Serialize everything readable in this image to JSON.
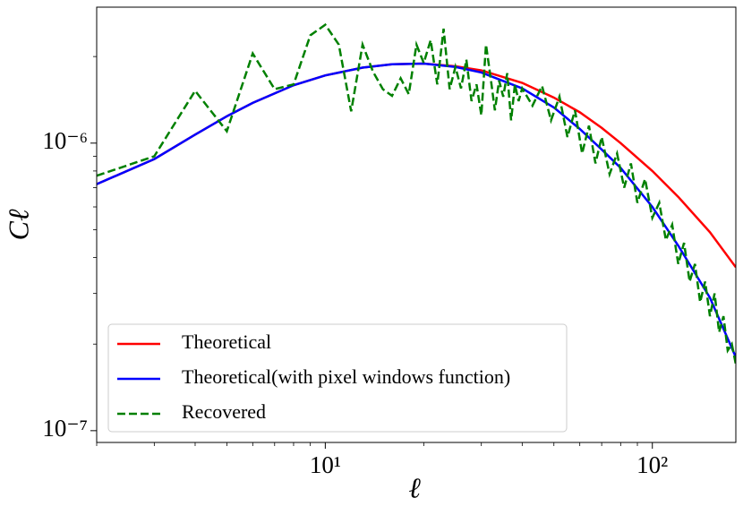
{
  "chart_data": {
    "type": "line",
    "xlabel": "ℓ",
    "ylabel": "Cℓ",
    "xscale": "log",
    "yscale": "log",
    "xlim": [
      2,
      180
    ],
    "ylim": [
      9.1e-08,
      2.97e-06
    ],
    "xticks": [
      {
        "value": 10,
        "label": "10¹"
      },
      {
        "value": 100,
        "label": "10²"
      }
    ],
    "yticks": [
      {
        "value": 1e-07,
        "label": "10⁻⁷"
      },
      {
        "value": 1e-06,
        "label": "10⁻⁶"
      }
    ],
    "xminor_ticks": [
      2,
      3,
      4,
      5,
      6,
      7,
      8,
      9,
      20,
      30,
      40,
      50,
      60,
      70,
      80,
      90
    ],
    "yminor_ticks": [
      2e-07,
      3e-07,
      4e-07,
      5e-07,
      6e-07,
      7e-07,
      8e-07,
      9e-07,
      2e-06
    ],
    "legend": "lower left",
    "series": [
      {
        "name": "Theoretical",
        "color": "#ff0000",
        "dash": "solid",
        "x": [
          2,
          3,
          4,
          5,
          6,
          8,
          10,
          13,
          16,
          20,
          25,
          30,
          40,
          50,
          60,
          70,
          80,
          100,
          120,
          150,
          180
        ],
        "values": [
          7.2e-07,
          8.8e-07,
          1.07e-06,
          1.24e-06,
          1.38e-06,
          1.59e-06,
          1.72e-06,
          1.83e-06,
          1.88e-06,
          1.89e-06,
          1.85e-06,
          1.79e-06,
          1.62e-06,
          1.44e-06,
          1.28e-06,
          1.13e-06,
          1e-06,
          8e-07,
          6.5e-07,
          4.9e-07,
          3.7e-07
        ]
      },
      {
        "name": "Theoretical(with pixel windows function)",
        "color": "#0000ff",
        "dash": "solid",
        "x": [
          2,
          3,
          4,
          5,
          6,
          8,
          10,
          13,
          16,
          20,
          25,
          30,
          40,
          50,
          60,
          70,
          80,
          100,
          120,
          150,
          180
        ],
        "values": [
          7.2e-07,
          8.8e-07,
          1.07e-06,
          1.24e-06,
          1.38e-06,
          1.59e-06,
          1.72e-06,
          1.83e-06,
          1.88e-06,
          1.89e-06,
          1.84e-06,
          1.76e-06,
          1.55e-06,
          1.33e-06,
          1.12e-06,
          9.5e-07,
          8.2e-07,
          6e-07,
          4.4e-07,
          2.9e-07,
          1.8e-07
        ]
      },
      {
        "name": "Recovered",
        "color": "#008000",
        "dash": "dashed",
        "x": [
          2,
          3,
          4,
          5,
          6,
          7,
          8,
          9,
          10,
          11,
          12,
          13,
          14,
          15,
          16,
          17,
          18,
          19,
          20,
          21,
          22,
          23,
          24,
          25,
          26,
          27,
          28,
          29,
          30,
          31,
          32,
          33,
          34,
          35,
          36,
          37,
          38,
          39,
          40,
          43,
          46,
          49,
          52,
          55,
          58,
          61,
          64,
          67,
          70,
          74,
          78,
          82,
          86,
          90,
          95,
          100,
          105,
          110,
          115,
          120,
          125,
          130,
          135,
          140,
          145,
          150,
          155,
          160,
          165,
          170,
          175,
          180
        ],
        "values": [
          7.7e-07,
          9e-07,
          1.52e-06,
          1.1e-06,
          2.05e-06,
          1.54e-06,
          1.6e-06,
          2.37e-06,
          2.58e-06,
          2.2e-06,
          1.29e-06,
          2.2e-06,
          1.77e-06,
          1.54e-06,
          1.46e-06,
          1.68e-06,
          1.48e-06,
          2.2e-06,
          1.9e-06,
          2.28e-06,
          1.6e-06,
          2.5e-06,
          1.54e-06,
          1.84e-06,
          1.55e-06,
          1.95e-06,
          1.4e-06,
          1.6e-06,
          1.25e-06,
          2.2e-06,
          1.7e-06,
          1.3e-06,
          1.65e-06,
          1.45e-06,
          1.75e-06,
          1.2e-06,
          1.6e-06,
          1.4e-06,
          1.55e-06,
          1.35e-06,
          1.58e-06,
          1.2e-06,
          1.45e-06,
          1.05e-06,
          1.3e-06,
          9.2e-07,
          1.15e-06,
          8.5e-07,
          1.05e-06,
          7.8e-07,
          9.2e-07,
          7e-07,
          8.5e-07,
          6.2e-07,
          7.5e-07,
          5.5e-07,
          6.2e-07,
          4.6e-07,
          5.2e-07,
          3.8e-07,
          4.5e-07,
          3.3e-07,
          3.8e-07,
          2.8e-07,
          3.3e-07,
          2.5e-07,
          3e-07,
          2.2e-07,
          2.5e-07,
          1.9e-07,
          2e-07,
          1.7e-07
        ]
      }
    ]
  }
}
